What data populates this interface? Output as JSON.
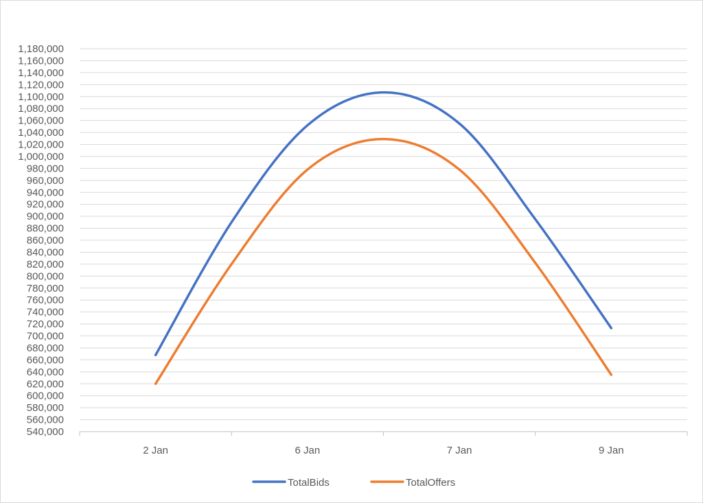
{
  "chart_data": {
    "type": "line",
    "smooth": true,
    "title": "",
    "xlabel": "",
    "ylabel": "",
    "categories": [
      "2 Jan",
      "",
      "6 Jan",
      "",
      "7 Jan",
      "",
      "9 Jan"
    ],
    "ylim": [
      540000,
      1180000
    ],
    "ytick_step": 20000,
    "grid": "horizontal",
    "legend": "bottom-center",
    "series": [
      {
        "name": "TotalBids",
        "color": "#4472c4",
        "x": [
          0,
          1,
          2,
          3,
          4,
          5,
          6
        ],
        "values": [
          668000,
          890000,
          1052000,
          1107000,
          1055000,
          895000,
          713000
        ]
      },
      {
        "name": "TotalOffers",
        "color": "#ed7d31",
        "x": [
          0,
          1,
          2,
          3,
          4,
          5,
          6
        ],
        "values": [
          620000,
          820000,
          978000,
          1029000,
          978000,
          822000,
          635000
        ]
      }
    ]
  }
}
